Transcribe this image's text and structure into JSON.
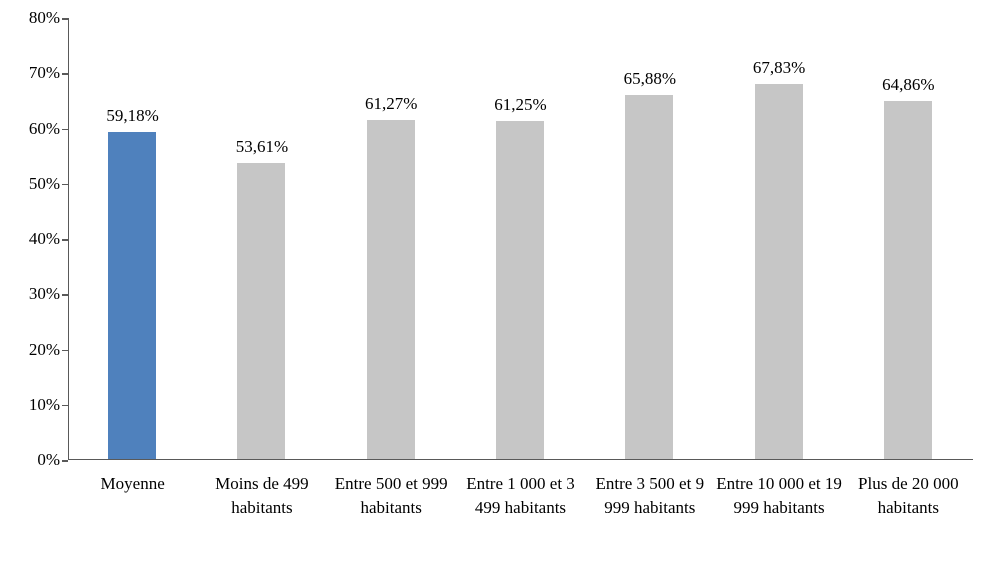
{
  "chart_data": {
    "type": "bar",
    "title": "",
    "xlabel": "",
    "ylabel": "",
    "categories": [
      "Moyenne",
      "Moins de 499 habitants",
      "Entre 500 et 999 habitants",
      "Entre 1 000 et 3 499 habitants",
      "Entre 3 500 et 9 999 habitants",
      "Entre 10 000 et 19 999 habitants",
      "Plus de 20 000 habitants"
    ],
    "values": [
      59.18,
      53.61,
      61.27,
      61.25,
      65.88,
      67.83,
      64.86
    ],
    "value_labels": [
      "59,18%",
      "53,61%",
      "61,27%",
      "61,25%",
      "65,88%",
      "67,83%",
      "64,86%"
    ],
    "bar_colors": [
      "#4f81bd",
      "#c6c6c6",
      "#c6c6c6",
      "#c6c6c6",
      "#c6c6c6",
      "#c6c6c6",
      "#c6c6c6"
    ],
    "highlight_color": "#4f81bd",
    "default_bar_color": "#c6c6c6",
    "axis_color": "#595959",
    "ylim": [
      0,
      80
    ],
    "y_tick_step": 10,
    "y_tick_labels": [
      "0%",
      "10%",
      "20%",
      "30%",
      "40%",
      "50%",
      "60%",
      "70%",
      "80%"
    ],
    "grid": false,
    "legend_position": "none"
  }
}
